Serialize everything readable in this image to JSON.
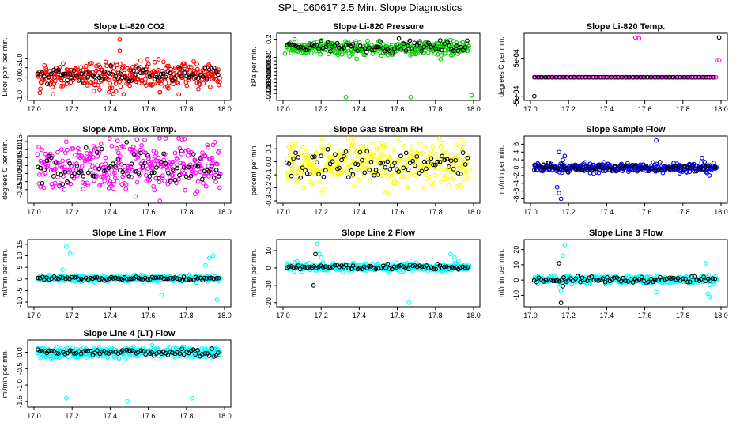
{
  "figure": {
    "title": "SPL_060617  2.5 Min. Slope Diagnostics"
  },
  "chart_data": [
    {
      "type": "scatter",
      "title": "Slope Li-820 CO2",
      "xlabel": "",
      "ylabel": "Licor ppm per min.",
      "xlim": [
        17.0,
        18.0
      ],
      "ylim": [
        -1.1,
        2.2
      ],
      "x_ticks": [
        "17.0",
        "17.2",
        "17.4",
        "17.6",
        "17.8",
        "18.0"
      ],
      "y_ticks": [
        "-1.0",
        "0.0",
        "0.5",
        "1.0"
      ],
      "y_tick_values": [
        -1.0,
        0.0,
        0.5,
        1.0
      ],
      "series": [
        {
          "color": "#ff0000",
          "n": 320,
          "center": 0.1,
          "spread": 0.35,
          "outliers": [
            [
              17.45,
              2.0
            ],
            [
              17.45,
              1.4
            ],
            [
              17.1,
              -0.9
            ],
            [
              17.76,
              -0.9
            ],
            [
              17.66,
              -0.8
            ]
          ]
        },
        {
          "color": "#000000",
          "n": 80,
          "center": 0.15,
          "spread": 0.2,
          "outliers": []
        }
      ]
    },
    {
      "type": "scatter",
      "title": "Slope Li-820 Pressure",
      "xlabel": "",
      "ylabel": "kPa per min.",
      "xlim": [
        17.0,
        18.0
      ],
      "ylim": [
        -0.125,
        0.22
      ],
      "x_ticks": [
        "17.0",
        "17.2",
        "17.4",
        "17.6",
        "17.8",
        "18.0"
      ],
      "y_ticks": [
        "-0.10",
        "-0.06",
        "-0.02",
        "0.02",
        "0.06",
        "0.10"
      ],
      "y_tick_values": [
        -0.1,
        -0.06,
        -0.02,
        0.02,
        0.06,
        0.1
      ],
      "y_ticks_b": [
        "-0.08",
        "-0.04",
        "0.00",
        "0.04",
        "0.08",
        "0.2"
      ],
      "y_tick_values_b": [
        -0.08,
        -0.04,
        0.0,
        0.04,
        0.08,
        0.2
      ],
      "series": [
        {
          "color": "#00cc00",
          "n": 320,
          "center": 0.15,
          "spread": 0.02,
          "outliers": [
            [
              17.33,
              -0.12
            ],
            [
              17.67,
              -0.12
            ],
            [
              17.99,
              -0.11
            ],
            [
              17.01,
              0.12
            ],
            [
              17.06,
              0.2
            ]
          ]
        },
        {
          "color": "#000000",
          "n": 80,
          "center": 0.16,
          "spread": 0.015,
          "outliers": []
        }
      ]
    },
    {
      "type": "scatter",
      "title": "Slope Li-820 Temp.",
      "xlabel": "",
      "ylabel": "degrees C per min.",
      "xlim": [
        17.0,
        18.0
      ],
      "ylim": [
        -0.00055,
        0.0011
      ],
      "x_ticks": [
        "17.0",
        "17.2",
        "17.4",
        "17.6",
        "17.8",
        "18.0"
      ],
      "y_ticks": [
        "-5e-04",
        "5e-04"
      ],
      "y_tick_values": [
        -0.0005,
        0.0005
      ],
      "y_ticks_b": [
        "-5e-04",
        "5e-04"
      ],
      "y_tick_values_b": [
        -0.0005,
        0.0005
      ],
      "series": [
        {
          "color": "#ff00ff",
          "n": 120,
          "center": 0.0,
          "spread": 0.0,
          "outliers": [
            [
              17.55,
              0.00105
            ],
            [
              17.57,
              0.00103
            ],
            [
              17.98,
              0.00045
            ],
            [
              17.99,
              0.00045
            ]
          ]
        },
        {
          "color": "#000000",
          "n": 50,
          "center": 0.0,
          "spread": 0.0,
          "outliers": [
            [
              17.02,
              -0.0005
            ],
            [
              17.99,
              0.00105
            ]
          ]
        }
      ]
    },
    {
      "type": "scatter",
      "title": "Slope Amb. Box Temp.",
      "xlabel": "",
      "ylabel": "degrees C per min.",
      "xlim": [
        17.0,
        18.0
      ],
      "ylim": [
        -0.22,
        0.17
      ],
      "x_ticks": [
        "17.0",
        "17.2",
        "17.4",
        "17.6",
        "17.8",
        "18.0"
      ],
      "y_ticks": [
        "-0.15",
        "-0.05",
        "0.05",
        "0.15"
      ],
      "y_tick_values": [
        -0.15,
        -0.05,
        0.05,
        0.15
      ],
      "y_ticks_b": [
        "-0.10",
        "0.00",
        "0.10"
      ],
      "y_tick_values_b": [
        -0.1,
        0.0,
        0.1
      ],
      "series": [
        {
          "color": "#ff00ff",
          "n": 320,
          "center": 0.0,
          "spread": 0.08,
          "outliers": []
        },
        {
          "color": "#000000",
          "n": 80,
          "center": 0.0,
          "spread": 0.05,
          "outliers": []
        }
      ]
    },
    {
      "type": "scatter",
      "title": "Slope Gas Stream RH",
      "xlabel": "",
      "ylabel": "percent per min.",
      "xlim": [
        17.0,
        18.0
      ],
      "ylim": [
        -0.3,
        0.18
      ],
      "x_ticks": [
        "17.0",
        "17.2",
        "17.4",
        "17.6",
        "17.8",
        "18.0"
      ],
      "y_ticks": [
        "-0.3",
        "-0.2",
        "-0.1",
        "0.0",
        "0.1"
      ],
      "y_tick_values": [
        -0.3,
        -0.2,
        -0.1,
        0.0,
        0.1
      ],
      "series": [
        {
          "color": "#ffff00",
          "n": 320,
          "center": -0.02,
          "spread": 0.09,
          "outliers": []
        },
        {
          "color": "#000000",
          "n": 80,
          "center": -0.02,
          "spread": 0.06,
          "outliers": []
        }
      ]
    },
    {
      "type": "scatter",
      "title": "Slope Sample Flow",
      "xlabel": "",
      "ylabel": "ml/min per min.",
      "xlim": [
        17.0,
        18.0
      ],
      "ylim": [
        -8.5,
        7.5
      ],
      "x_ticks": [
        "17.0",
        "17.2",
        "17.4",
        "17.6",
        "17.8",
        "18.0"
      ],
      "y_ticks": [
        "-8",
        "-4",
        "0",
        "4"
      ],
      "y_tick_values": [
        -8,
        -4,
        0,
        4
      ],
      "y_ticks_b": [
        "-6",
        "-2",
        "2",
        "6"
      ],
      "y_tick_values_b": [
        -6,
        -2,
        2,
        6
      ],
      "series": [
        {
          "color": "#0000ff",
          "n": 320,
          "center": 0.0,
          "spread": 0.6,
          "outliers": [
            [
              17.14,
              -5
            ],
            [
              17.15,
              -6.5
            ],
            [
              17.16,
              -8
            ],
            [
              17.15,
              4
            ],
            [
              17.17,
              2
            ],
            [
              17.18,
              3
            ],
            [
              17.66,
              7
            ],
            [
              17.9,
              2.5
            ],
            [
              17.94,
              -2
            ]
          ]
        },
        {
          "color": "#000000",
          "n": 80,
          "center": 0.0,
          "spread": 0.5,
          "outliers": []
        }
      ]
    },
    {
      "type": "scatter",
      "title": "Slope Line 1 Flow",
      "xlabel": "",
      "ylabel": "ml/min per min.",
      "xlim": [
        17.0,
        18.0
      ],
      "ylim": [
        -11,
        16
      ],
      "x_ticks": [
        "17.0",
        "17.2",
        "17.4",
        "17.6",
        "17.8",
        "18.0"
      ],
      "y_ticks": [
        "-10",
        "0",
        "10"
      ],
      "y_tick_values": [
        -10,
        0,
        10
      ],
      "y_ticks_b": [
        "-5",
        "5",
        "15"
      ],
      "y_tick_values_b": [
        -5,
        5,
        15
      ],
      "series": [
        {
          "color": "#00ffff",
          "n": 320,
          "center": 0.3,
          "spread": 0.7,
          "outliers": [
            [
              17.17,
              14
            ],
            [
              17.19,
              11
            ],
            [
              17.15,
              4
            ],
            [
              17.67,
              -7
            ],
            [
              17.92,
              9
            ],
            [
              17.94,
              10
            ],
            [
              17.9,
              6
            ],
            [
              17.96,
              -9
            ]
          ]
        },
        {
          "color": "#000000",
          "n": 80,
          "center": 0.2,
          "spread": 0.4,
          "outliers": []
        }
      ]
    },
    {
      "type": "scatter",
      "title": "Slope Line 2 Flow",
      "xlabel": "",
      "ylabel": "ml/min per min.",
      "xlim": [
        17.0,
        18.0
      ],
      "ylim": [
        -21,
        15
      ],
      "x_ticks": [
        "17.0",
        "17.2",
        "17.4",
        "17.6",
        "17.8",
        "18.0"
      ],
      "y_ticks": [
        "-20",
        "-10",
        "0",
        "10"
      ],
      "y_tick_values": [
        -20,
        -10,
        0,
        10
      ],
      "series": [
        {
          "color": "#00ffff",
          "n": 320,
          "center": 0.5,
          "spread": 1.2,
          "outliers": [
            [
              17.18,
              14
            ],
            [
              17.19,
              8
            ],
            [
              17.2,
              6
            ],
            [
              17.66,
              -20
            ],
            [
              17.88,
              8
            ],
            [
              17.9,
              6
            ],
            [
              17.92,
              4
            ]
          ]
        },
        {
          "color": "#000000",
          "n": 80,
          "center": 0.5,
          "spread": 0.8,
          "outliers": [
            [
              17.16,
              -10
            ],
            [
              17.17,
              8
            ]
          ]
        }
      ]
    },
    {
      "type": "scatter",
      "title": "Slope Line 3 Flow",
      "xlabel": "",
      "ylabel": "ml/min per min.",
      "xlim": [
        17.0,
        18.0
      ],
      "ylim": [
        -16,
        25
      ],
      "x_ticks": [
        "17.0",
        "17.2",
        "17.4",
        "17.6",
        "17.8",
        "18.0"
      ],
      "y_ticks": [
        "-10",
        "0",
        "10",
        "20"
      ],
      "y_tick_values": [
        -10,
        0,
        10,
        20
      ],
      "series": [
        {
          "color": "#00ffff",
          "n": 320,
          "center": 0.3,
          "spread": 1.3,
          "outliers": [
            [
              17.18,
              23
            ],
            [
              17.17,
              16
            ],
            [
              17.15,
              -5
            ],
            [
              17.16,
              -7
            ],
            [
              17.66,
              -8
            ],
            [
              17.92,
              11
            ],
            [
              17.93,
              -9
            ],
            [
              17.94,
              -11
            ]
          ]
        },
        {
          "color": "#000000",
          "n": 80,
          "center": 0.3,
          "spread": 1.0,
          "outliers": [
            [
              17.15,
              11
            ],
            [
              17.16,
              -15
            ],
            [
              17.17,
              -4
            ]
          ]
        }
      ]
    },
    {
      "type": "scatter",
      "title": "Slope Line 4 (LT) Flow",
      "xlabel": "",
      "ylabel": "ml/min per min.",
      "xlim": [
        17.0,
        18.0
      ],
      "ylim": [
        -1.6,
        0.3
      ],
      "x_ticks": [
        "17.0",
        "17.2",
        "17.4",
        "17.6",
        "17.8",
        "18.0"
      ],
      "y_ticks": [
        "-1.5",
        "-0.5"
      ],
      "y_tick_values": [
        -1.5,
        -0.5
      ],
      "y_ticks_b": [
        "-1.0",
        "0.0"
      ],
      "y_tick_values_b": [
        -1.0,
        0.0
      ],
      "series": [
        {
          "color": "#00ffff",
          "n": 320,
          "center": 0.0,
          "spread": 0.08,
          "outliers": [
            [
              17.17,
              -1.4
            ],
            [
              17.49,
              -1.5
            ],
            [
              17.83,
              -1.4
            ]
          ]
        },
        {
          "color": "#000000",
          "n": 80,
          "center": 0.0,
          "spread": 0.06,
          "outliers": []
        }
      ]
    }
  ]
}
